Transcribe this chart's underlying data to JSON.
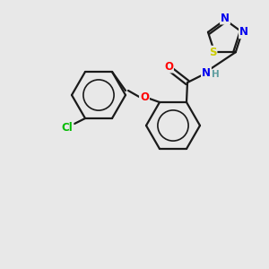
{
  "bg_color": "#e8e8e8",
  "bond_color": "#1a1a1a",
  "atom_colors": {
    "O": "#ff0000",
    "N": "#0000ee",
    "S": "#cccc00",
    "Cl": "#00bb00",
    "H": "#5f9ea0"
  },
  "figsize": [
    3.0,
    3.0
  ],
  "dpi": 100
}
